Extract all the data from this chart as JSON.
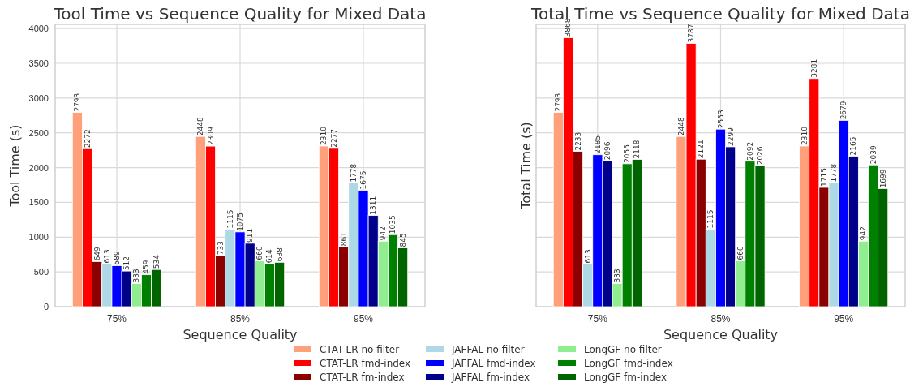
{
  "chart_data": [
    {
      "type": "bar",
      "title": "Tool Time vs Sequence Quality for Mixed Data",
      "xlabel": "Sequence Quality",
      "ylabel": "Tool Time (s)",
      "categories": [
        "75%",
        "85%",
        "95%"
      ],
      "ylim": [
        0,
        4060
      ],
      "yticks": [
        0,
        500,
        1000,
        1500,
        2000,
        2500,
        3000,
        3500,
        4000
      ],
      "grid": true,
      "legend": "bottom",
      "data_labels": true,
      "series": [
        {
          "name": "CTAT-LR no filter",
          "color": "#ffa07a",
          "values": [
            2793,
            2448,
            2310
          ]
        },
        {
          "name": "CTAT-LR fmd-index",
          "color": "#ff0000",
          "values": [
            2272,
            2309,
            2277
          ]
        },
        {
          "name": "CTAT-LR fm-index",
          "color": "#8b0000",
          "values": [
            649,
            733,
            861
          ]
        },
        {
          "name": "JAFFAL no filter",
          "color": "#add8e6",
          "values": [
            613,
            1115,
            1778
          ]
        },
        {
          "name": "JAFFAL fmd-index",
          "color": "#0000ff",
          "values": [
            589,
            1075,
            1675
          ]
        },
        {
          "name": "JAFFAL fm-index",
          "color": "#00008b",
          "values": [
            512,
            911,
            1311
          ]
        },
        {
          "name": "LongGF no filter",
          "color": "#90ee90",
          "values": [
            333,
            660,
            942
          ]
        },
        {
          "name": "LongGF fmd-index",
          "color": "#008000",
          "values": [
            459,
            614,
            1035
          ]
        },
        {
          "name": "LongGF fm-index",
          "color": "#006400",
          "values": [
            534,
            638,
            845
          ]
        }
      ]
    },
    {
      "type": "bar",
      "title": "Total Time vs Sequence Quality for Mixed Data",
      "xlabel": "Sequence Quality",
      "ylabel": "Total Time (s)",
      "categories": [
        "75%",
        "85%",
        "95%"
      ],
      "ylim": [
        0,
        4060
      ],
      "yticks": [
        0,
        500,
        1000,
        1500,
        2000,
        2500,
        3000,
        3500,
        4000
      ],
      "tick_labels": "x",
      "grid": true,
      "data_labels": true,
      "series": [
        {
          "color": "#ffa07a",
          "values": [
            2793,
            2448,
            2310
          ]
        },
        {
          "color": "#ff0000",
          "values": [
            3868,
            3787,
            3281
          ]
        },
        {
          "color": "#8b0000",
          "values": [
            2233,
            2121,
            1715
          ]
        },
        {
          "color": "#add8e6",
          "values": [
            613,
            1115,
            1778
          ]
        },
        {
          "color": "#0000ff",
          "values": [
            2185,
            2553,
            2679
          ]
        },
        {
          "color": "#00008b",
          "values": [
            2096,
            2299,
            2165
          ]
        },
        {
          "color": "#90ee90",
          "values": [
            333,
            660,
            942
          ]
        },
        {
          "color": "#008000",
          "values": [
            2055,
            2092,
            2039
          ]
        },
        {
          "color": "#006400",
          "values": [
            2118,
            2026,
            1699
          ]
        }
      ]
    }
  ]
}
